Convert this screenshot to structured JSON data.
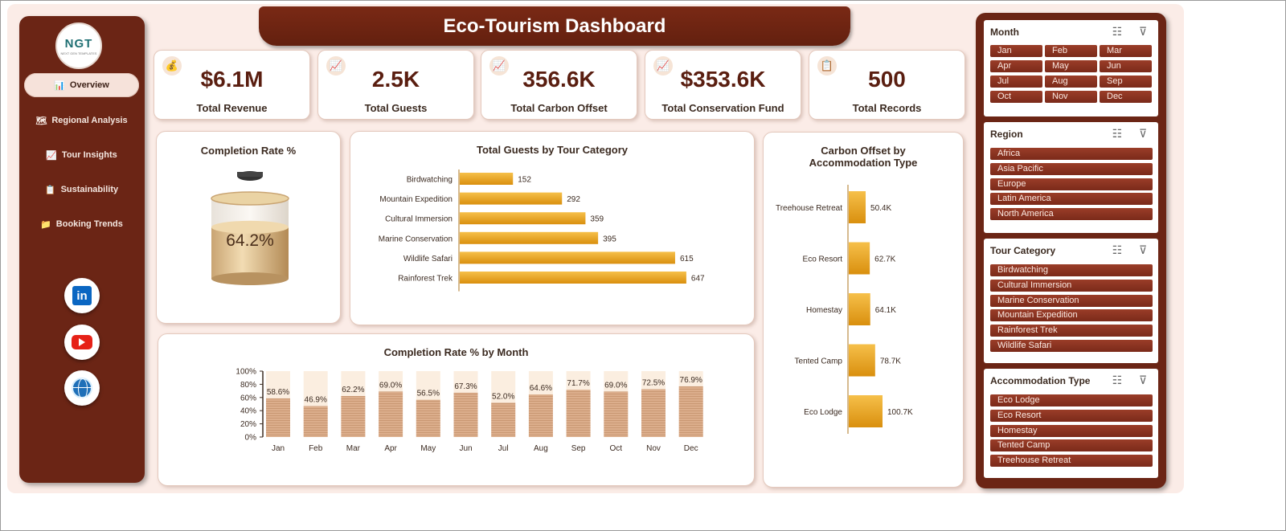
{
  "title": "Eco-Tourism Dashboard",
  "logo": {
    "text": "NGT",
    "subtext": "NEXT GEN TEMPLATES"
  },
  "nav": [
    {
      "label": "Overview",
      "icon": "📊",
      "active": true
    },
    {
      "label": "Regional Analysis",
      "icon": "🗺",
      "active": false
    },
    {
      "label": "Tour Insights",
      "icon": "📈",
      "active": false
    },
    {
      "label": "Sustainability",
      "icon": "📋",
      "active": false
    },
    {
      "label": "Booking Trends",
      "icon": "📁",
      "active": false
    }
  ],
  "social": {
    "linkedin": "in"
  },
  "kpis": [
    {
      "value": "$6.1M",
      "label": "Total Revenue",
      "icon": "💰"
    },
    {
      "value": "2.5K",
      "label": "Total Guests",
      "icon": "📈"
    },
    {
      "value": "356.6K",
      "label": "Total Carbon Offset",
      "icon": "📈"
    },
    {
      "value": "$353.6K",
      "label": "Total Conservation Fund",
      "icon": "📈"
    },
    {
      "value": "500",
      "label": "Total Records",
      "icon": "📋"
    }
  ],
  "completion_rate": {
    "title": "Completion Rate %",
    "value_label": "64.2%",
    "value": 0.642
  },
  "chart_data": [
    {
      "type": "bar",
      "orientation": "horizontal",
      "title": "Total Guests by Tour Category",
      "categories": [
        "Birdwatching",
        "Mountain Expedition",
        "Cultural Immersion",
        "Marine Conservation",
        "Wildlife Safari",
        "Rainforest Trek"
      ],
      "values": [
        152,
        292,
        359,
        395,
        615,
        647
      ],
      "labels": [
        "152",
        "292",
        "359",
        "395",
        "615",
        "647"
      ],
      "xlim": [
        0,
        700
      ],
      "color": "#e8a317"
    },
    {
      "type": "bar",
      "title": "Completion Rate % by Month",
      "categories": [
        "Jan",
        "Feb",
        "Mar",
        "Apr",
        "May",
        "Jun",
        "Jul",
        "Aug",
        "Sep",
        "Oct",
        "Nov",
        "Dec"
      ],
      "values": [
        58.6,
        46.9,
        62.2,
        69.0,
        56.5,
        67.3,
        52.0,
        64.6,
        71.7,
        69.0,
        72.5,
        76.9
      ],
      "labels": [
        "58.6%",
        "46.9%",
        "62.2%",
        "69.0%",
        "56.5%",
        "67.3%",
        "52.0%",
        "64.6%",
        "71.7%",
        "69.0%",
        "72.5%",
        "76.9%"
      ],
      "yticks": [
        "0%",
        "20%",
        "40%",
        "60%",
        "80%",
        "100%"
      ],
      "ylim": [
        0,
        100
      ],
      "color": "#dcae8c",
      "background_color": "#fbeee0"
    },
    {
      "type": "bar",
      "orientation": "horizontal",
      "title": "Carbon Offset by Accommodation Type",
      "title_lines": [
        "Carbon Offset by",
        "Accommodation Type"
      ],
      "categories": [
        "Treehouse Retreat",
        "Eco Resort",
        "Homestay",
        "Tented Camp",
        "Eco Lodge"
      ],
      "values": [
        50.4,
        62.7,
        64.1,
        78.7,
        100.7
      ],
      "labels": [
        "50.4K",
        "62.7K",
        "64.1K",
        "78.7K",
        "100.7K"
      ],
      "unit": "K",
      "color": "#e8a317"
    }
  ],
  "slicers": [
    {
      "title": "Month",
      "columns": 3,
      "items": [
        "Jan",
        "Feb",
        "Mar",
        "Apr",
        "May",
        "Jun",
        "Jul",
        "Aug",
        "Sep",
        "Oct",
        "Nov",
        "Dec"
      ]
    },
    {
      "title": "Region",
      "columns": 1,
      "items": [
        "Africa",
        "Asia Pacific",
        "Europe",
        "Latin America",
        "North America"
      ]
    },
    {
      "title": "Tour Category",
      "columns": 1,
      "items": [
        "Birdwatching",
        "Cultural Immersion",
        "Marine Conservation",
        "Mountain Expedition",
        "Rainforest Trek",
        "Wildlife Safari"
      ]
    },
    {
      "title": "Accommodation Type",
      "columns": 1,
      "items": [
        "Eco Lodge",
        "Eco Resort",
        "Homestay",
        "Tented Camp",
        "Treehouse Retreat"
      ]
    }
  ]
}
